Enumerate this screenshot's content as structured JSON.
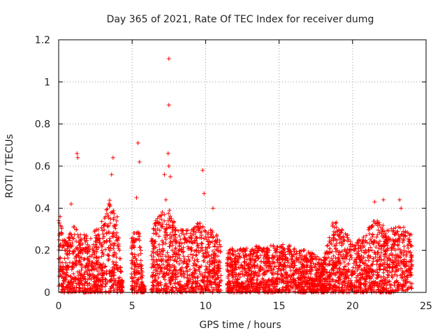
{
  "chart_data": {
    "type": "scatter",
    "title": "Day 365 of 2021, Rate Of TEC Index for receiver dumg",
    "xlabel": "GPS time / hours",
    "ylabel": "ROTI / TECUs",
    "xlim": [
      0,
      25
    ],
    "ylim": [
      0,
      1.2
    ],
    "x_ticks": [
      0,
      5,
      10,
      15,
      20,
      25
    ],
    "x_tick_labels": [
      "0",
      "5",
      "10",
      "15",
      "20",
      "25"
    ],
    "y_ticks": [
      0,
      0.2,
      0.4,
      0.6,
      0.8,
      1.0,
      1.2
    ],
    "y_tick_labels": [
      "0",
      "0.2",
      "0.4",
      "0.6",
      "0.8",
      "1",
      "1.2"
    ],
    "grid": true,
    "marker": "plus",
    "color": "#ff0000",
    "outliers": [
      {
        "x": 7.5,
        "y": 1.11
      },
      {
        "x": 7.5,
        "y": 0.89
      },
      {
        "x": 5.4,
        "y": 0.71
      },
      {
        "x": 1.25,
        "y": 0.66
      },
      {
        "x": 1.3,
        "y": 0.64
      },
      {
        "x": 7.45,
        "y": 0.66
      },
      {
        "x": 3.7,
        "y": 0.64
      },
      {
        "x": 5.5,
        "y": 0.62
      },
      {
        "x": 9.8,
        "y": 0.58
      },
      {
        "x": 7.2,
        "y": 0.56
      },
      {
        "x": 3.6,
        "y": 0.56
      },
      {
        "x": 7.5,
        "y": 0.6
      },
      {
        "x": 7.6,
        "y": 0.55
      },
      {
        "x": 9.9,
        "y": 0.47
      },
      {
        "x": 5.3,
        "y": 0.45
      },
      {
        "x": 0.85,
        "y": 0.42
      },
      {
        "x": 7.3,
        "y": 0.44
      },
      {
        "x": 10.5,
        "y": 0.4
      },
      {
        "x": 22.1,
        "y": 0.44
      },
      {
        "x": 23.2,
        "y": 0.44
      },
      {
        "x": 21.5,
        "y": 0.43
      },
      {
        "x": 23.3,
        "y": 0.4
      },
      {
        "x": 0.1,
        "y": 0.36
      },
      {
        "x": 3.5,
        "y": 0.41
      }
    ],
    "density_envelope": [
      {
        "x": 0.0,
        "y_max": 0.36
      },
      {
        "x": 0.5,
        "y_max": 0.25
      },
      {
        "x": 1.0,
        "y_max": 0.32
      },
      {
        "x": 1.5,
        "y_max": 0.28
      },
      {
        "x": 2.0,
        "y_max": 0.27
      },
      {
        "x": 2.5,
        "y_max": 0.3
      },
      {
        "x": 3.0,
        "y_max": 0.35
      },
      {
        "x": 3.5,
        "y_max": 0.45
      },
      {
        "x": 4.0,
        "y_max": 0.38
      },
      {
        "x": 4.3,
        "y_max": 0.05
      },
      {
        "x": 5.0,
        "y_max": 0.28
      },
      {
        "x": 5.5,
        "y_max": 0.3
      },
      {
        "x": 5.8,
        "y_max": 0.02
      },
      {
        "x": 6.5,
        "y_max": 0.33
      },
      {
        "x": 7.0,
        "y_max": 0.38
      },
      {
        "x": 7.5,
        "y_max": 0.4
      },
      {
        "x": 8.0,
        "y_max": 0.32
      },
      {
        "x": 8.5,
        "y_max": 0.3
      },
      {
        "x": 9.0,
        "y_max": 0.3
      },
      {
        "x": 9.5,
        "y_max": 0.34
      },
      {
        "x": 10.0,
        "y_max": 0.3
      },
      {
        "x": 10.5,
        "y_max": 0.3
      },
      {
        "x": 11.0,
        "y_max": 0.25
      },
      {
        "x": 12.0,
        "y_max": 0.2
      },
      {
        "x": 13.0,
        "y_max": 0.22
      },
      {
        "x": 14.0,
        "y_max": 0.22
      },
      {
        "x": 15.0,
        "y_max": 0.23
      },
      {
        "x": 16.0,
        "y_max": 0.22
      },
      {
        "x": 17.0,
        "y_max": 0.2
      },
      {
        "x": 18.0,
        "y_max": 0.15
      },
      {
        "x": 18.7,
        "y_max": 0.35
      },
      {
        "x": 19.5,
        "y_max": 0.28
      },
      {
        "x": 20.5,
        "y_max": 0.25
      },
      {
        "x": 21.5,
        "y_max": 0.35
      },
      {
        "x": 22.5,
        "y_max": 0.3
      },
      {
        "x": 23.5,
        "y_max": 0.32
      },
      {
        "x": 24.0,
        "y_max": 0.28
      }
    ]
  }
}
